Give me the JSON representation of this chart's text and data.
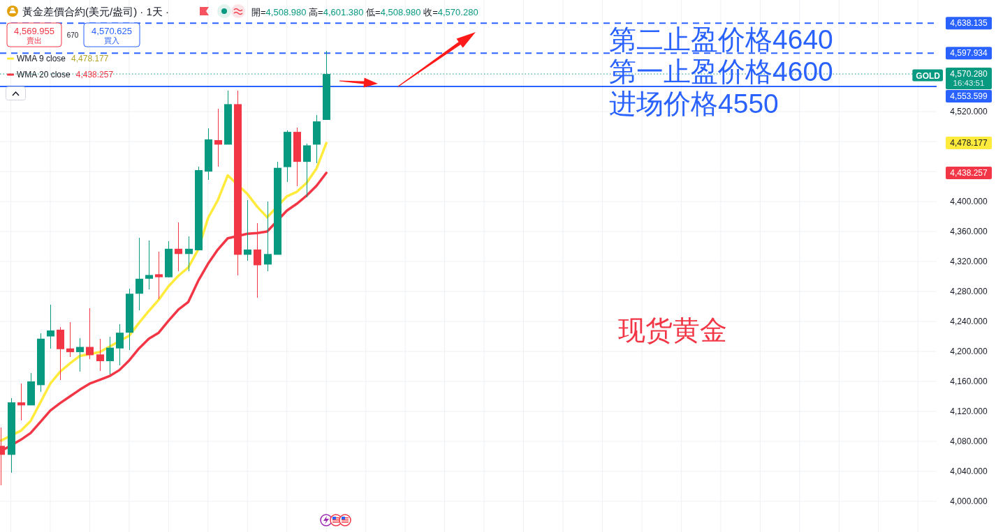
{
  "chart_data": {
    "type": "candlestick",
    "title": "黃金差價合約(美元/盎司) · 1天 ·",
    "subtitle": "開=4,508.980 高=4,601.380 低=4,508.980 收=4,570.280",
    "categories": [
      null,
      null,
      null,
      null,
      null,
      null,
      null,
      null,
      null,
      null,
      null,
      null,
      null,
      null,
      null,
      null,
      null,
      null,
      null,
      null,
      null,
      null,
      null,
      null,
      null,
      null,
      null,
      null,
      null,
      null,
      null,
      null,
      null,
      null,
      null,
      null,
      null,
      null,
      null,
      null,
      null,
      null,
      null,
      null,
      null,
      null,
      null,
      null,
      null,
      null,
      null,
      null,
      null,
      null,
      null,
      null,
      null,
      null,
      null,
      null,
      null,
      null,
      null,
      null,
      null,
      null,
      null,
      null,
      null,
      null,
      null,
      null,
      null,
      null,
      null,
      null,
      null,
      null,
      null,
      null,
      null,
      null,
      null,
      null,
      null,
      null,
      null,
      null,
      null,
      null,
      null,
      null,
      null,
      null,
      null
    ],
    "ohlc": [
      [
        4074,
        4099,
        4021,
        4062
      ],
      [
        4062,
        4138,
        4038,
        4132
      ],
      [
        4132,
        4157,
        4108,
        4128
      ],
      [
        4128,
        4171,
        4128,
        4160
      ],
      [
        4155,
        4224,
        4146,
        4217
      ],
      [
        4220,
        4262,
        4204,
        4228
      ],
      [
        4229,
        4233,
        4162,
        4203
      ],
      [
        4204,
        4239,
        4193,
        4199
      ],
      [
        4199,
        4218,
        4173,
        4206
      ],
      [
        4206,
        4258,
        4190,
        4195
      ],
      [
        4196,
        4217,
        4174,
        4187
      ],
      [
        4187,
        4220,
        4169,
        4205
      ],
      [
        4204,
        4236,
        4181,
        4225
      ],
      [
        4225,
        4284,
        4202,
        4277
      ],
      [
        4277,
        4352,
        4255,
        4297
      ],
      [
        4297,
        4348,
        4283,
        4302
      ],
      [
        4303,
        4333,
        4270,
        4299
      ],
      [
        4299,
        4347,
        4299,
        4337
      ],
      [
        4337,
        4372,
        4307,
        4330
      ],
      [
        4330,
        4354,
        4307,
        4337
      ],
      [
        4335,
        4447,
        4335,
        4442
      ],
      [
        4440,
        4498,
        4429,
        4483
      ],
      [
        4482,
        4524,
        4447,
        4476
      ],
      [
        4476,
        4548,
        4476,
        4530
      ],
      [
        4530,
        4548,
        4301,
        4329
      ],
      [
        4329,
        4402,
        4321,
        4336
      ],
      [
        4336,
        4371,
        4272,
        4315
      ],
      [
        4316,
        4400,
        4307,
        4330
      ],
      [
        4329,
        4453,
        4329,
        4445
      ],
      [
        4446,
        4495,
        4426,
        4493
      ],
      [
        4493,
        4499,
        4421,
        4453
      ],
      [
        4453,
        4477,
        4406,
        4475
      ],
      [
        4476,
        4515,
        4451,
        4507
      ],
      [
        4508.98,
        4601.38,
        4508.98,
        4570.28
      ],
      null,
      null,
      null,
      null,
      null,
      null,
      null,
      null,
      null,
      null,
      null,
      null,
      null,
      null,
      null,
      null,
      null,
      null,
      null,
      null,
      null,
      null,
      null,
      null,
      null,
      null,
      null,
      null,
      null,
      null,
      null,
      null,
      null,
      null,
      null,
      null,
      null,
      null,
      null,
      null,
      null,
      null,
      null,
      null,
      null,
      null,
      null,
      null,
      null,
      null,
      null,
      null,
      null,
      null,
      null,
      null,
      null,
      null,
      null,
      null,
      null
    ],
    "colors": [
      "#f23645",
      "#089981",
      "#f23645",
      "#089981",
      "#089981",
      "#089981",
      "#f23645",
      "#f23645",
      "#089981",
      "#f23645",
      "#f23645",
      "#089981",
      "#089981",
      "#089981",
      "#089981",
      "#089981",
      "#f23645",
      "#089981",
      "#f23645",
      "#089981",
      "#089981",
      "#089981",
      "#f23645",
      "#089981",
      "#f23645",
      "#089981",
      "#f23645",
      "#089981",
      "#089981",
      "#089981",
      "#f23645",
      "#089981",
      "#089981",
      "#089981",
      null,
      null,
      null,
      null,
      null,
      null,
      null,
      null,
      null,
      null,
      null,
      null,
      null,
      null,
      null,
      null,
      null,
      null,
      null,
      null,
      null,
      null,
      null,
      null,
      null,
      null,
      null,
      null,
      null,
      null,
      null,
      null,
      null,
      null,
      null,
      null,
      null,
      null,
      null,
      null,
      null,
      null,
      null,
      null,
      null,
      null,
      null,
      null,
      null,
      null,
      null,
      null,
      null,
      null,
      null,
      null,
      null,
      null,
      null,
      null,
      null
    ],
    "series": [
      {
        "name": "WMA 9 close",
        "type": "line",
        "color": "#ffeb3b",
        "values": [
          4081,
          null,
          4094,
          4107,
          4132,
          4157,
          4173,
          4184,
          4194,
          null,
          4199,
          null,
          null,
          4221,
          4238,
          4254,
          4269,
          4287,
          4301,
          4312,
          4336,
          4378,
          4402,
          4435,
          null,
          4410,
          4393,
          4379,
          null,
          4407,
          4413,
          4425,
          4444,
          4478.177,
          null,
          null,
          null,
          null,
          null,
          null,
          null,
          null,
          null,
          null,
          null,
          null,
          null,
          null,
          null,
          null,
          null,
          null,
          null,
          null,
          null,
          null,
          null,
          null,
          null,
          null,
          null,
          null,
          null,
          null,
          null,
          null,
          null,
          null,
          null,
          null,
          null,
          null,
          null,
          null,
          null,
          null,
          null,
          null,
          null,
          null,
          null,
          null,
          null,
          null,
          null,
          null,
          null,
          null,
          null,
          null,
          null,
          null,
          null,
          null,
          null
        ]
      },
      {
        "name": "WMA 20 close",
        "type": "line",
        "color": "#f23645",
        "values": [
          4067,
          null,
          4082,
          4091,
          4106,
          4121,
          4131,
          4140,
          4149,
          4157,
          4162,
          4167,
          4175,
          4188,
          4204,
          4217,
          4225,
          4241,
          4256,
          4266,
          4294,
          4317,
          4336,
          4351,
          null,
          4357,
          4358,
          4360,
          null,
          4388,
          4397,
          4408,
          4421,
          4438.257,
          null,
          null,
          null,
          null,
          null,
          null,
          null,
          null,
          null,
          null,
          null,
          null,
          null,
          null,
          null,
          null,
          null,
          null,
          null,
          null,
          null,
          null,
          null,
          null,
          null,
          null,
          null,
          null,
          null,
          null,
          null,
          null,
          null,
          null,
          null,
          null,
          null,
          null,
          null,
          null,
          null,
          null,
          null,
          null,
          null,
          null,
          null,
          null,
          null,
          null,
          null,
          null,
          null,
          null,
          null,
          null,
          null,
          null,
          null,
          null,
          null
        ]
      }
    ],
    "ylim": [
      3959,
      4669
    ],
    "yticks": [
      {
        "value": 4000,
        "label": "4,000.000"
      },
      {
        "value": 4040,
        "label": "4,040.000"
      },
      {
        "value": 4080,
        "label": "4,080.000"
      },
      {
        "value": 4120,
        "label": "4,120.000"
      },
      {
        "value": 4160,
        "label": "4,160.000"
      },
      {
        "value": 4200,
        "label": "4,200.000"
      },
      {
        "value": 4240,
        "label": "4,240.000"
      },
      {
        "value": 4280,
        "label": "4,280.000"
      },
      {
        "value": 4320,
        "label": "4,320.000"
      },
      {
        "value": 4360,
        "label": "4,360.000"
      },
      {
        "value": 4400,
        "label": "4,400.000"
      },
      {
        "value": 4440,
        "label": null
      },
      {
        "value": 4480,
        "label": null
      },
      {
        "value": 4520,
        "label": "4,520.000"
      }
    ],
    "ref_lines": [
      {
        "axis": "y",
        "value": 4638.135,
        "label": "4,638.135",
        "color": "#2962ff",
        "line_style": "dashed"
      },
      {
        "axis": "y",
        "value": 4597.934,
        "label": "4,597.934",
        "color": "#2962ff",
        "line_style": "dashed"
      },
      {
        "axis": "y",
        "value": 4570.28,
        "label": "4,570.280\n16:43:51",
        "color": "#089981",
        "line_style": "dotted"
      },
      {
        "axis": "y",
        "value": 4553.599,
        "label": "4,553.599",
        "color": "#2962ff",
        "line_style": "solid"
      }
    ],
    "annotations": [
      "4,569.955",
      "賣出",
      "670",
      "4,570.625",
      "買入",
      {
        "text": "第二止盈价格4640",
        "y": 4638.135
      },
      {
        "text": "第一止盈价格4600",
        "y": 4597.934
      },
      {
        "text": "进场价格4550",
        "y": 4553.599
      },
      "现货黄金",
      {
        "text": "GOLD",
        "y": 4570.28
      },
      "4,478.177",
      "4,438.257",
      "4,478.177",
      "4,438.257"
    ],
    "grid": true,
    "legend": "top left",
    "tick_labels": "y"
  }
}
